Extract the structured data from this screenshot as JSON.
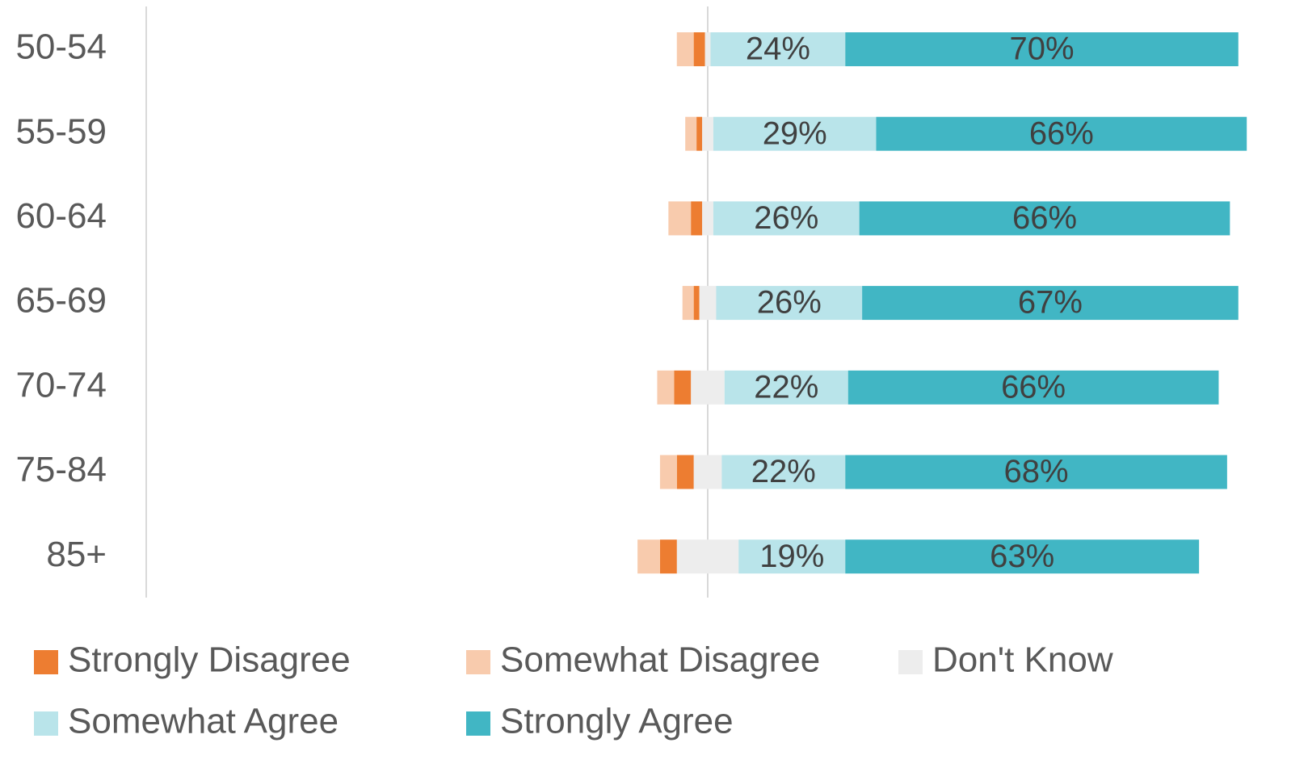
{
  "chart_data": {
    "type": "diverging_bar",
    "categories": [
      "50-54",
      "55-59",
      "60-64",
      "65-69",
      "70-74",
      "75-84",
      "85+"
    ],
    "xlim": [
      -100,
      100
    ],
    "series": [
      {
        "name": "Strongly Disagree",
        "color": "#ed7d31",
        "side": "left",
        "values": [
          2,
          1,
          2,
          1,
          3,
          3,
          3
        ]
      },
      {
        "name": "Somewhat Disagree",
        "color": "#f8cbad",
        "side": "left",
        "values": [
          3,
          2,
          4,
          2,
          3,
          3,
          4
        ]
      },
      {
        "name": "Don't Know",
        "color": "#ededed",
        "side": "center",
        "values": [
          1,
          2,
          2,
          3,
          6,
          5,
          11
        ]
      },
      {
        "name": "Somewhat Agree",
        "color": "#b9e4ea",
        "side": "right",
        "values": [
          24,
          29,
          26,
          26,
          22,
          22,
          19
        ],
        "value_labels": [
          "24%",
          "29%",
          "26%",
          "26%",
          "22%",
          "22%",
          "19%"
        ]
      },
      {
        "name": "Strongly Agree",
        "color": "#41b6c4",
        "side": "right",
        "values": [
          70,
          66,
          66,
          67,
          66,
          68,
          63
        ],
        "value_labels": [
          "70%",
          "66%",
          "66%",
          "67%",
          "66%",
          "68%",
          "63%"
        ]
      }
    ]
  }
}
